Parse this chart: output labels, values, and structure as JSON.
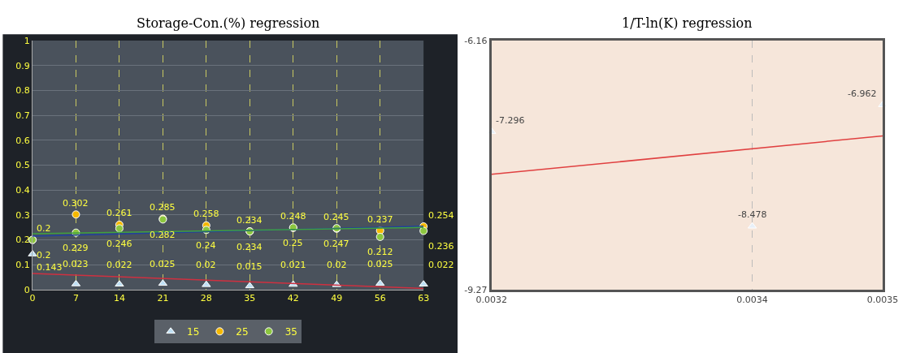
{
  "chart_data": [
    {
      "type": "scatter",
      "title": "Storage-Con.(%) regression",
      "x": [
        0,
        7,
        14,
        21,
        28,
        35,
        42,
        49,
        56,
        63
      ],
      "series": [
        {
          "name": "15",
          "color": "#bfe0f5",
          "marker": "triangle",
          "values": [
            0.143,
            0.023,
            0.022,
            0.025,
            0.02,
            0.015,
            0.021,
            0.02,
            0.025,
            0.022
          ],
          "value_labels": [
            "0.143",
            "0.023",
            "0.022",
            "0.025",
            "0.02",
            "0.015",
            "0.021",
            "0.02",
            "0.025",
            "0.022"
          ]
        },
        {
          "name": "25",
          "color": "#f5b800",
          "marker": "circle",
          "values": [
            0.2,
            0.302,
            0.261,
            0.285,
            0.258,
            0.234,
            0.248,
            0.245,
            0.237,
            0.254
          ],
          "value_labels": [
            "0.2",
            "0.302",
            "0.261",
            "0.285",
            "0.258",
            "0.234",
            "0.248",
            "0.245",
            "0.237",
            "0.254"
          ]
        },
        {
          "name": "35",
          "color": "#8cc63f",
          "marker": "circle",
          "values": [
            0.2,
            0.229,
            0.246,
            0.282,
            0.24,
            0.234,
            0.25,
            0.247,
            0.212,
            0.236
          ],
          "value_labels": [
            "0.2",
            "0.229",
            "0.246",
            "0.282",
            "0.24",
            "0.234",
            "0.25",
            "0.247",
            "0.212",
            "0.236"
          ]
        },
        {
          "type": "line",
          "color": "#d03040",
          "marker": "none",
          "x": [
            0,
            63
          ],
          "values": [
            0.065,
            0.005
          ]
        },
        {
          "type": "line",
          "color": "#2040a0",
          "marker": "none",
          "x": [
            0,
            63
          ],
          "values": [
            0.215,
            0.255
          ]
        },
        {
          "type": "line",
          "color": "#40a040",
          "marker": "none",
          "x": [
            0,
            63
          ],
          "values": [
            0.225,
            0.25
          ]
        }
      ],
      "xlim": [
        0,
        63
      ],
      "xticks": [
        0,
        7,
        14,
        21,
        28,
        35,
        42,
        49,
        56,
        63
      ],
      "ylim": [
        0,
        1
      ],
      "yticks": [
        0,
        0.1,
        0.2,
        0.3,
        0.4,
        0.5,
        0.6,
        0.7,
        0.8,
        0.9,
        1
      ],
      "grid": true,
      "legend": "bottom"
    },
    {
      "type": "scatter",
      "title": "1/T-ln(K) regression",
      "x": [
        0.0032,
        0.0034,
        0.0035
      ],
      "series": [
        {
          "color": "#e8f0f8",
          "marker": "triangle",
          "values": [
            -7.296,
            -8.478,
            -6.962
          ],
          "value_labels": [
            "-7.296",
            "-8.478",
            "-6.962"
          ]
        },
        {
          "type": "line",
          "color": "#e04040",
          "marker": "none",
          "x": [
            0.0032,
            0.0035
          ],
          "values": [
            -7.83,
            -7.35
          ]
        }
      ],
      "xlim": [
        0.0032,
        0.0035
      ],
      "xticks": [
        0.0032,
        0.0034,
        0.0035
      ],
      "ylim": [
        -9.27,
        -6.16
      ],
      "yticks": [
        -6.16,
        -9.27
      ],
      "grid": "x",
      "legend": false
    }
  ]
}
